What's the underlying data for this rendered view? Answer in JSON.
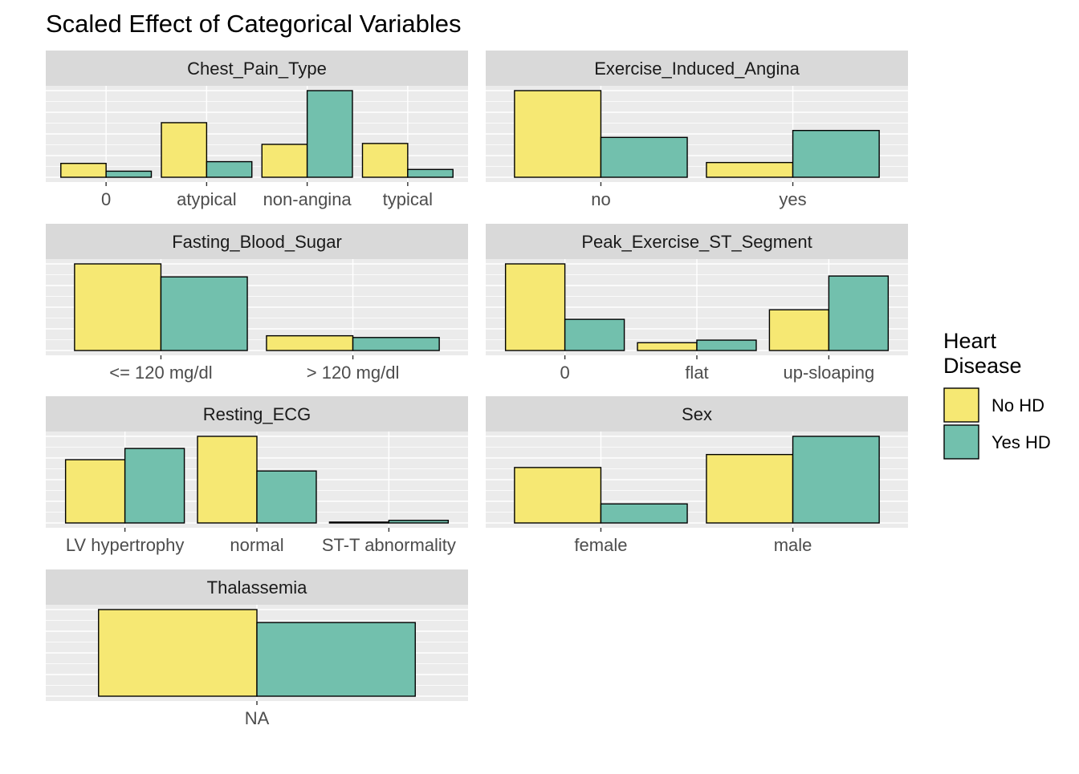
{
  "chart_data": {
    "type": "bar",
    "title": "Scaled Effect of Categorical Variables",
    "legend": {
      "title_lines": [
        "Heart",
        "Disease"
      ],
      "placement": "right",
      "entries": [
        {
          "label": "No HD",
          "color": "#f6e873"
        },
        {
          "label": "Yes HD",
          "color": "#72c0ad"
        }
      ]
    },
    "colors": {
      "panel_background": "#ebebeb",
      "strip_background": "#d9d9d9",
      "grid": "#ffffff",
      "bar_outline": "#000000"
    },
    "facets": [
      {
        "name": "Chest_Pain_Type",
        "categories": [
          "0",
          "atypical",
          "non-angina",
          "typical"
        ],
        "series": [
          {
            "name": "No HD",
            "values": [
              0.16,
              0.63,
              0.38,
              0.39
            ]
          },
          {
            "name": "Yes HD",
            "values": [
              0.07,
              0.18,
              1.0,
              0.09
            ]
          }
        ]
      },
      {
        "name": "Exercise_Induced_Angina",
        "categories": [
          "no",
          "yes"
        ],
        "series": [
          {
            "name": "No HD",
            "values": [
              1.0,
              0.17
            ]
          },
          {
            "name": "Yes HD",
            "values": [
              0.46,
              0.54
            ]
          }
        ]
      },
      {
        "name": "Fasting_Blood_Sugar",
        "categories": [
          "<= 120 mg/dl",
          "> 120 mg/dl"
        ],
        "series": [
          {
            "name": "No HD",
            "values": [
              1.0,
              0.17
            ]
          },
          {
            "name": "Yes HD",
            "values": [
              0.85,
              0.15
            ]
          }
        ]
      },
      {
        "name": "Peak_Exercise_ST_Segment",
        "categories": [
          "0",
          "flat",
          "up-sloaping"
        ],
        "series": [
          {
            "name": "No HD",
            "values": [
              1.0,
              0.09,
              0.47
            ]
          },
          {
            "name": "Yes HD",
            "values": [
              0.36,
              0.12,
              0.86
            ]
          }
        ]
      },
      {
        "name": "Resting_ECG",
        "categories": [
          "LV hypertrophy",
          "normal",
          "ST-T abnormality"
        ],
        "series": [
          {
            "name": "No HD",
            "values": [
              0.73,
              1.0,
              0.01
            ]
          },
          {
            "name": "Yes HD",
            "values": [
              0.86,
              0.6,
              0.03
            ]
          }
        ]
      },
      {
        "name": "Sex",
        "categories": [
          "female",
          "male"
        ],
        "series": [
          {
            "name": "No HD",
            "values": [
              0.64,
              0.79
            ]
          },
          {
            "name": "Yes HD",
            "values": [
              0.22,
              1.0
            ]
          }
        ]
      },
      {
        "name": "Thalassemia",
        "categories": [
          "NA"
        ],
        "series": [
          {
            "name": "No HD",
            "values": [
              1.0
            ]
          },
          {
            "name": "Yes HD",
            "values": [
              0.85
            ]
          }
        ]
      }
    ]
  }
}
